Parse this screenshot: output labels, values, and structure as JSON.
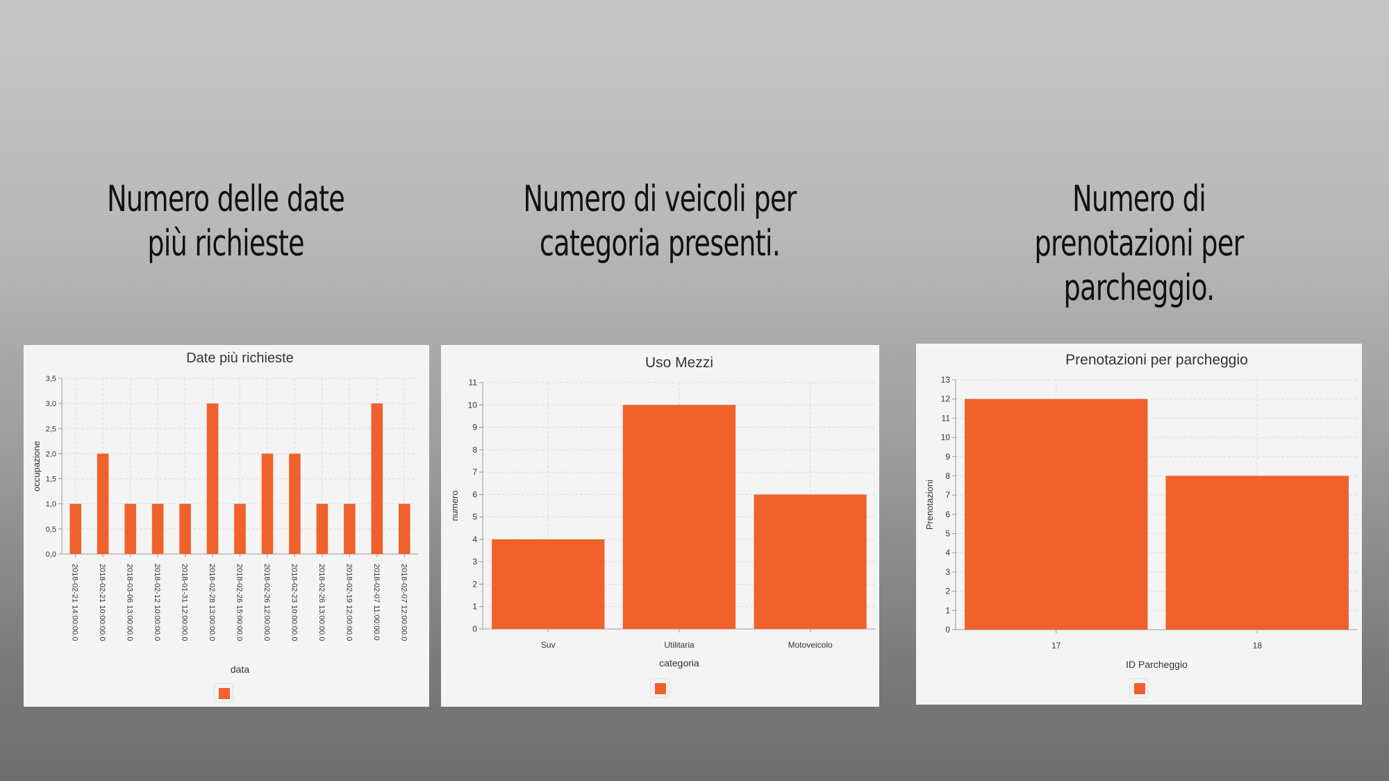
{
  "colors": {
    "bar": "#f0612c",
    "bar_dark": "#e0582a"
  },
  "slide": {
    "titles": [
      "Numero delle date più richieste",
      "Numero di veicoli per categoria presenti.",
      "Numero di prenotazioni per parcheggio."
    ]
  },
  "chart_data": [
    {
      "type": "bar",
      "title": "Date più richieste",
      "xlabel": "data",
      "ylabel": "occupazione",
      "ylim": [
        0,
        3.5
      ],
      "yticks": [
        "0,0",
        "0,5",
        "1,0",
        "1,5",
        "2,0",
        "2,5",
        "3,0",
        "3,5"
      ],
      "categories": [
        "2018-02-21 14:00:00.0",
        "2018-02-21 10:00:00.0",
        "2018-03-06 13:00:00.0",
        "2018-02-12 10:00:00.0",
        "2018-01-31 12:00:00.0",
        "2018-02-28 13:00:00.0",
        "2018-02-26 15:00:00.0",
        "2018-02-26 12:00:00.0",
        "2018-02-23 10:00:00.0",
        "2018-02-26 13:00:00.0",
        "2018-02-19 12:00:00.0",
        "2018-02-07 11:00:00.0",
        "2018-02-07 12:00:00.0"
      ],
      "values": [
        1,
        2,
        1,
        1,
        1,
        3,
        1,
        2,
        2,
        1,
        1,
        3,
        1
      ],
      "grid": true,
      "legend": "bottom"
    },
    {
      "type": "bar",
      "title": "Uso Mezzi",
      "xlabel": "categoria",
      "ylabel": "numero",
      "ylim": [
        0,
        11
      ],
      "yticks": [
        "0",
        "1",
        "2",
        "3",
        "4",
        "5",
        "6",
        "7",
        "8",
        "9",
        "10",
        "11"
      ],
      "categories": [
        "Suv",
        "Utilitaria",
        "Motoveicolo"
      ],
      "values": [
        4,
        10,
        6
      ],
      "grid": true,
      "legend": "bottom"
    },
    {
      "type": "bar",
      "title": "Prenotazioni per parcheggio",
      "xlabel": "ID Parcheggio",
      "ylabel": "Prenotazioni",
      "ylim": [
        0,
        13
      ],
      "yticks": [
        "0",
        "1",
        "2",
        "3",
        "4",
        "5",
        "6",
        "7",
        "8",
        "9",
        "10",
        "11",
        "12",
        "13"
      ],
      "categories": [
        "17",
        "18"
      ],
      "values": [
        12,
        8
      ],
      "grid": true,
      "legend": "bottom"
    }
  ]
}
